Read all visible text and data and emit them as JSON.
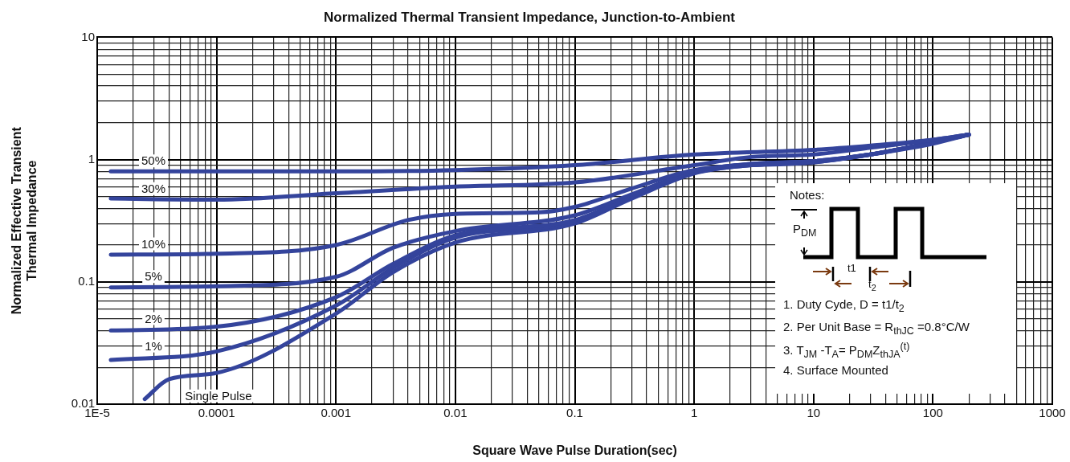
{
  "chart_data": {
    "type": "line",
    "title": "Normalized Thermal Transient Impedance, Junction-to-Ambient",
    "xlabel": "Square Wave Pulse Duration(sec)",
    "ylabel": "Normalized Effective Transient Thermal Impedance",
    "log": "xy",
    "grid": true,
    "legend": false,
    "marker": "none",
    "line_style": "solid",
    "xlim": [
      1e-05,
      1000
    ],
    "ylim": [
      0.01,
      10
    ],
    "xticks": [
      {
        "value": 1e-05,
        "label": "1E-5"
      },
      {
        "value": 2e-05,
        "label": null
      },
      {
        "value": 3e-05,
        "label": null
      },
      {
        "value": 4e-05,
        "label": null
      },
      {
        "value": 5e-05,
        "label": null
      },
      {
        "value": 6e-05,
        "label": null
      },
      {
        "value": 7e-05,
        "label": null
      },
      {
        "value": 8e-05,
        "label": null
      },
      {
        "value": 9e-05,
        "label": null
      },
      0.0001,
      {
        "value": 0.0002,
        "label": null
      },
      {
        "value": 0.0003,
        "label": null
      },
      {
        "value": 0.0004,
        "label": null
      },
      {
        "value": 0.0005,
        "label": null
      },
      {
        "value": 0.0006,
        "label": null
      },
      {
        "value": 0.0007,
        "label": null
      },
      {
        "value": 0.0008,
        "label": null
      },
      {
        "value": 0.0009,
        "label": null
      },
      0.001,
      {
        "value": 0.002,
        "label": null
      },
      {
        "value": 0.003,
        "label": null
      },
      {
        "value": 0.004,
        "label": null
      },
      {
        "value": 0.005,
        "label": null
      },
      {
        "value": 0.006,
        "label": null
      },
      {
        "value": 0.007,
        "label": null
      },
      {
        "value": 0.008,
        "label": null
      },
      {
        "value": 0.009,
        "label": null
      },
      0.01,
      {
        "value": 0.02,
        "label": null
      },
      {
        "value": 0.03,
        "label": null
      },
      {
        "value": 0.04,
        "label": null
      },
      {
        "value": 0.05,
        "label": null
      },
      {
        "value": 0.06,
        "label": null
      },
      {
        "value": 0.07,
        "label": null
      },
      {
        "value": 0.08,
        "label": null
      },
      {
        "value": 0.09,
        "label": null
      },
      0.1,
      {
        "value": 0.2,
        "label": null
      },
      {
        "value": 0.3,
        "label": null
      },
      {
        "value": 0.4,
        "label": null
      },
      {
        "value": 0.5,
        "label": null
      },
      {
        "value": 0.6,
        "label": null
      },
      {
        "value": 0.7,
        "label": null
      },
      {
        "value": 0.8,
        "label": null
      },
      {
        "value": 0.9,
        "label": null
      },
      1,
      {
        "value": 2,
        "label": null
      },
      {
        "value": 3,
        "label": null
      },
      {
        "value": 4,
        "label": null
      },
      {
        "value": 5,
        "label": null
      },
      {
        "value": 6,
        "label": null
      },
      {
        "value": 7,
        "label": null
      },
      {
        "value": 8,
        "label": null
      },
      {
        "value": 9,
        "label": null
      },
      10,
      {
        "value": 20,
        "label": null
      },
      {
        "value": 30,
        "label": null
      },
      {
        "value": 40,
        "label": null
      },
      {
        "value": 50,
        "label": null
      },
      {
        "value": 60,
        "label": null
      },
      {
        "value": 70,
        "label": null
      },
      {
        "value": 80,
        "label": null
      },
      {
        "value": 90,
        "label": null
      },
      100,
      {
        "value": 200,
        "label": null
      },
      {
        "value": 300,
        "label": null
      },
      {
        "value": 400,
        "label": null
      },
      {
        "value": 500,
        "label": null
      },
      {
        "value": 600,
        "label": null
      },
      {
        "value": 700,
        "label": null
      },
      {
        "value": 800,
        "label": null
      },
      {
        "value": 900,
        "label": null
      },
      1000
    ],
    "yticks": [
      0.01,
      {
        "value": 0.02,
        "label": null
      },
      {
        "value": 0.03,
        "label": null
      },
      {
        "value": 0.04,
        "label": null
      },
      {
        "value": 0.05,
        "label": null
      },
      {
        "value": 0.06,
        "label": null
      },
      {
        "value": 0.07,
        "label": null
      },
      {
        "value": 0.08,
        "label": null
      },
      {
        "value": 0.09,
        "label": null
      },
      0.1,
      {
        "value": 0.2,
        "label": null
      },
      {
        "value": 0.3,
        "label": null
      },
      {
        "value": 0.4,
        "label": null
      },
      {
        "value": 0.5,
        "label": null
      },
      {
        "value": 0.6,
        "label": null
      },
      {
        "value": 0.7,
        "label": null
      },
      {
        "value": 0.8,
        "label": null
      },
      {
        "value": 0.9,
        "label": null
      },
      1,
      {
        "value": 2,
        "label": null
      },
      {
        "value": 3,
        "label": null
      },
      {
        "value": 4,
        "label": null
      },
      {
        "value": 5,
        "label": null
      },
      {
        "value": 6,
        "label": null
      },
      {
        "value": 7,
        "label": null
      },
      {
        "value": 8,
        "label": null
      },
      {
        "value": 9,
        "label": null
      },
      10
    ],
    "series": [
      {
        "name": "50%",
        "color": "#34449c",
        "x": [
          1.3e-05,
          0.0001,
          0.001,
          0.01,
          0.1,
          1,
          10,
          30,
          100,
          200
        ],
        "values": [
          0.8,
          0.8,
          0.8,
          0.82,
          0.9,
          1.1,
          1.2,
          1.3,
          1.45,
          1.6
        ]
      },
      {
        "name": "30%",
        "color": "#34449c",
        "x": [
          1.3e-05,
          0.0001,
          0.001,
          0.01,
          0.1,
          1,
          3,
          10,
          30,
          100,
          200
        ],
        "values": [
          0.48,
          0.47,
          0.53,
          0.6,
          0.65,
          0.9,
          1.05,
          1.1,
          1.25,
          1.45,
          1.6
        ]
      },
      {
        "name": "10%",
        "color": "#34449c",
        "x": [
          1.3e-05,
          0.0001,
          0.001,
          0.004,
          0.01,
          0.05,
          0.1,
          0.3,
          1,
          10,
          30,
          100,
          200
        ],
        "values": [
          0.167,
          0.17,
          0.2,
          0.32,
          0.36,
          0.37,
          0.41,
          0.58,
          0.82,
          0.95,
          1.1,
          1.35,
          1.6
        ]
      },
      {
        "name": "5%",
        "color": "#34449c",
        "x": [
          1.3e-05,
          0.0001,
          0.001,
          0.003,
          0.01,
          0.1,
          0.3,
          1,
          3,
          10,
          30,
          100,
          200
        ],
        "values": [
          0.09,
          0.092,
          0.11,
          0.19,
          0.26,
          0.35,
          0.52,
          0.8,
          0.92,
          0.97,
          1.1,
          1.38,
          1.6
        ]
      },
      {
        "name": "2%",
        "color": "#34449c",
        "x": [
          1.3e-05,
          0.0001,
          0.001,
          0.003,
          0.01,
          0.1,
          0.3,
          1,
          3,
          10,
          30,
          100,
          200
        ],
        "values": [
          0.04,
          0.043,
          0.075,
          0.14,
          0.24,
          0.32,
          0.5,
          0.8,
          0.92,
          0.97,
          1.1,
          1.38,
          1.6
        ]
      },
      {
        "name": "1%",
        "color": "#34449c",
        "x": [
          1.3e-05,
          0.0001,
          0.001,
          0.003,
          0.01,
          0.1,
          0.3,
          1,
          3,
          10,
          30,
          100,
          200
        ],
        "values": [
          0.023,
          0.027,
          0.064,
          0.13,
          0.23,
          0.31,
          0.5,
          0.78,
          0.9,
          0.96,
          1.1,
          1.38,
          1.6
        ]
      },
      {
        "name": "Single Pulse",
        "color": "#34449c",
        "x": [
          2.5e-05,
          4e-05,
          0.0001,
          0.001,
          0.003,
          0.01,
          0.1,
          0.3,
          1,
          3,
          10,
          30,
          100,
          200
        ],
        "values": [
          0.011,
          0.016,
          0.018,
          0.055,
          0.12,
          0.21,
          0.3,
          0.48,
          0.77,
          0.9,
          0.95,
          1.1,
          1.38,
          1.6
        ]
      }
    ],
    "annotations": [
      "Notes:",
      "P$_{DM}$",
      "t1",
      "t$_{2}$",
      "1. Duty Cyde, D = t1/t$_{2}$",
      "2. Per Unit Base = R$_{thJC}$ =0.8°C/W",
      "3. T$_{JM}$ -T$_{A}$= P$_{DM}$Z$_{thJA}$$^{(t)}$",
      "4. Surface Mounted"
    ]
  }
}
